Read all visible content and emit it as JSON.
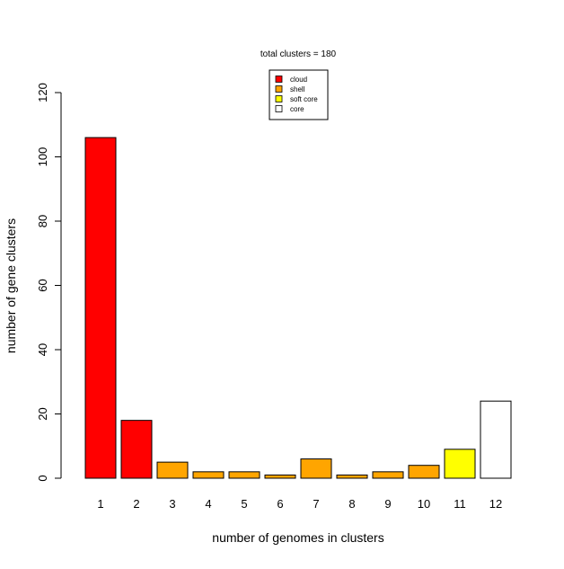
{
  "chart_data": {
    "type": "bar",
    "title": "total clusters = 180",
    "xlabel": "number of genomes in clusters",
    "ylabel": "number of gene clusters",
    "categories": [
      "1",
      "2",
      "3",
      "4",
      "5",
      "6",
      "7",
      "8",
      "9",
      "10",
      "11",
      "12"
    ],
    "values": [
      106,
      18,
      5,
      2,
      2,
      1,
      6,
      1,
      2,
      4,
      9,
      24
    ],
    "bar_groups": [
      "cloud",
      "cloud",
      "shell",
      "shell",
      "shell",
      "shell",
      "shell",
      "shell",
      "shell",
      "shell",
      "soft core",
      "core"
    ],
    "ylim": [
      0,
      120
    ],
    "yticks": [
      0,
      20,
      40,
      60,
      80,
      100,
      120
    ],
    "grid": false,
    "legend": {
      "placement": "top-center",
      "entries": [
        {
          "label": "cloud",
          "color": "#ff0000"
        },
        {
          "label": "shell",
          "color": "#ffa500"
        },
        {
          "label": "soft core",
          "color": "#ffff00"
        },
        {
          "label": "core",
          "color": "#ffffff"
        }
      ]
    }
  }
}
